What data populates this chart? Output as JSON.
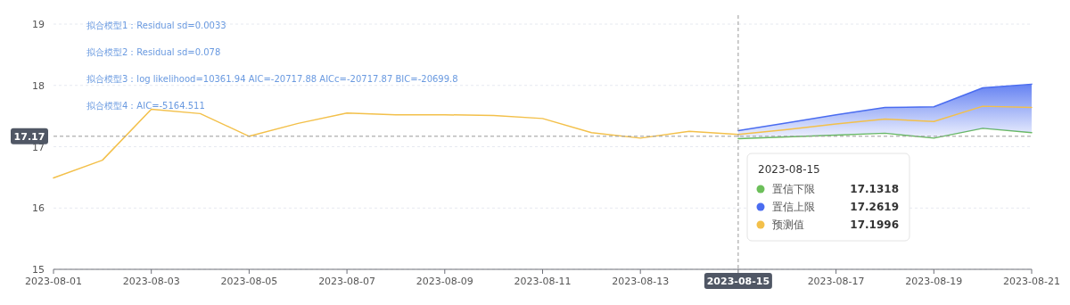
{
  "chart_data": {
    "type": "line",
    "x": [
      "2023-08-01",
      "2023-08-02",
      "2023-08-03",
      "2023-08-04",
      "2023-08-05",
      "2023-08-06",
      "2023-08-07",
      "2023-08-08",
      "2023-08-09",
      "2023-08-10",
      "2023-08-11",
      "2023-08-12",
      "2023-08-13",
      "2023-08-14",
      "2023-08-15",
      "2023-08-16",
      "2023-08-17",
      "2023-08-18",
      "2023-08-19",
      "2023-08-20",
      "2023-08-21"
    ],
    "series": [
      {
        "name": "置信下限",
        "color": "#6cbf5a",
        "values": [
          null,
          null,
          null,
          null,
          null,
          null,
          null,
          null,
          null,
          null,
          null,
          null,
          null,
          null,
          17.1318,
          17.16,
          17.19,
          17.22,
          17.14,
          17.3,
          17.23
        ]
      },
      {
        "name": "置信上限",
        "color": "#4a6cf0",
        "type": "area",
        "values": [
          null,
          null,
          null,
          null,
          null,
          null,
          null,
          null,
          null,
          null,
          null,
          null,
          null,
          null,
          17.2619,
          17.39,
          17.52,
          17.64,
          17.65,
          17.96,
          18.02
        ]
      },
      {
        "name": "预测值",
        "color": "#f3c04a",
        "values": [
          16.49,
          16.78,
          17.61,
          17.54,
          17.17,
          17.38,
          17.55,
          17.52,
          17.52,
          17.51,
          17.46,
          17.23,
          17.14,
          17.25,
          17.1996,
          17.28,
          17.37,
          17.45,
          17.41,
          17.66,
          17.64
        ]
      }
    ],
    "xlim": [
      "2023-08-01",
      "2023-08-21"
    ],
    "xticks": [
      "2023-08-01",
      "2023-08-03",
      "2023-08-05",
      "2023-08-07",
      "2023-08-09",
      "2023-08-11",
      "2023-08-13",
      "2023-08-15",
      "2023-08-17",
      "2023-08-19",
      "2023-08-21"
    ],
    "ylim": [
      15,
      19
    ],
    "yticks": [
      15,
      16,
      17,
      18,
      19
    ],
    "grid": "y",
    "legend": "right",
    "marker": "none",
    "line_style": "solid",
    "ref_lines": [
      {
        "axis": "y",
        "value": 17.17,
        "label": "17.17",
        "line_style": "dashed"
      },
      {
        "axis": "x",
        "value": "2023-08-15",
        "label": "2023-08-15",
        "line_style": "dashed"
      }
    ],
    "annotations": [
      "拟合模型1：Residual sd=0.0033",
      "拟合模型2：Residual sd=0.078",
      "拟合模型3：log likelihood=10361.94 AIC=-20717.88 AICc=-20717.87 BIC=-20699.8",
      "拟合模型4：AIC=-5164.511",
      "2023-08-15",
      "17.1318",
      "17.2619",
      "17.1996"
    ]
  }
}
